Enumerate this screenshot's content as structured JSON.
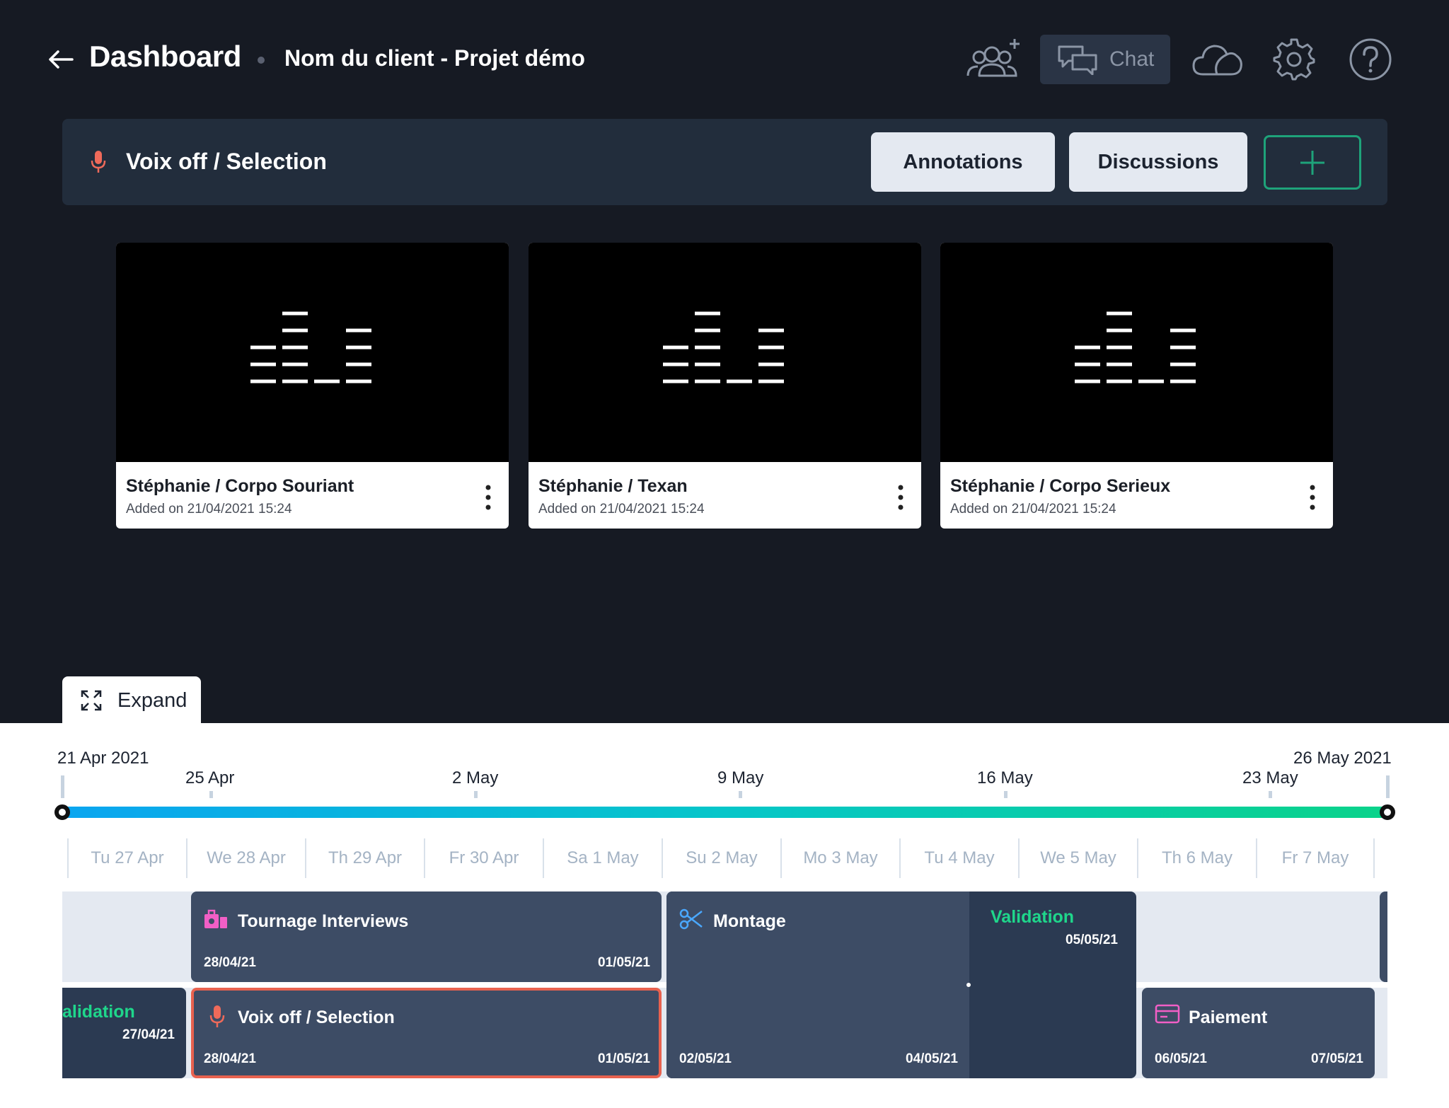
{
  "header": {
    "title": "Dashboard",
    "project": "Nom du client - Projet démo",
    "chat_label": "Chat",
    "icons": [
      "back-arrow-icon",
      "add-users-icon",
      "chat-icon",
      "cloud-icon",
      "gear-icon",
      "help-icon"
    ]
  },
  "section": {
    "title": "Voix off / Selection",
    "icon": "microphone-icon",
    "annotations_label": "Annotations",
    "discussions_label": "Discussions",
    "add_icon": "plus-icon"
  },
  "cards": [
    {
      "title": "Stéphanie / Corpo Souriant",
      "subtitle": "Added on 21/04/2021 15:24"
    },
    {
      "title": "Stéphanie / Texan",
      "subtitle": "Added on 21/04/2021 15:24"
    },
    {
      "title": "Stéphanie / Corpo Serieux",
      "subtitle": "Added on 21/04/2021 15:24"
    }
  ],
  "timeline": {
    "expand_label": "Expand",
    "start_label": "21 Apr 2021",
    "end_label": "26 May 2021",
    "week_labels": [
      "25 Apr",
      "2 May",
      "9 May",
      "16 May",
      "23 May"
    ],
    "days": [
      "Tu 27 Apr",
      "We 28 Apr",
      "Th 29 Apr",
      "Fr 30 Apr",
      "Sa 1 May",
      "Su 2 May",
      "Mo 3 May",
      "Tu 4 May",
      "We 5 May",
      "Th 6 May",
      "Fr 7 May"
    ],
    "tasks": {
      "tournage": {
        "title": "Tournage Interviews",
        "start": "28/04/21",
        "end": "01/05/21",
        "icon": "camera-bag-icon"
      },
      "montage": {
        "title": "Montage",
        "start": "02/05/21",
        "end": "04/05/21",
        "icon": "scissors-icon"
      },
      "validation": {
        "title": "Validation",
        "date": "05/05/21"
      },
      "validation_prev": {
        "title": "alidation",
        "date": "27/04/21"
      },
      "voixoff": {
        "title": "Voix off / Selection",
        "start": "28/04/21",
        "end": "01/05/21",
        "icon": "microphone-icon"
      },
      "paiement": {
        "title": "Paiement",
        "start": "06/05/21",
        "end": "07/05/21",
        "icon": "card-icon"
      }
    },
    "colors": {
      "accent_green": "#1fd68b",
      "task_block": "#3d4c65",
      "selected_border": "#e8624f"
    }
  }
}
